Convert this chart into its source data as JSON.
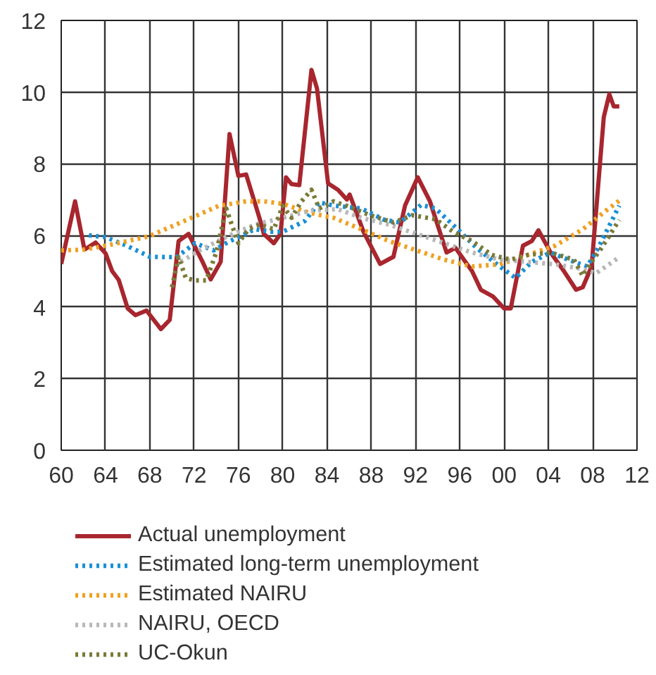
{
  "chart_data": {
    "type": "line",
    "xlim": [
      1960,
      2012
    ],
    "ylim": [
      0,
      12
    ],
    "xticks": [
      {
        "value": 1960,
        "label": "60"
      },
      {
        "value": 1964,
        "label": "64"
      },
      {
        "value": 1968,
        "label": "68"
      },
      {
        "value": 1972,
        "label": "72"
      },
      {
        "value": 1976,
        "label": "76"
      },
      {
        "value": 1980,
        "label": "80"
      },
      {
        "value": 1984,
        "label": "84"
      },
      {
        "value": 1988,
        "label": "88"
      },
      {
        "value": 1992,
        "label": "92"
      },
      {
        "value": 1996,
        "label": "96"
      },
      {
        "value": 2000,
        "label": "00"
      },
      {
        "value": 2004,
        "label": "04"
      },
      {
        "value": 2008,
        "label": "08"
      },
      {
        "value": 2012,
        "label": "12"
      }
    ],
    "yticks": [
      0,
      2,
      4,
      6,
      8,
      10,
      12
    ],
    "grid": true,
    "legend": "bottom",
    "series": [
      {
        "name": "Actual unemployment",
        "color": "#a8262e",
        "line_style": "solid",
        "x": [
          1960,
          1961.25,
          1962.1,
          1963.1,
          1964,
          1964.6,
          1965.2,
          1966,
          1966.7,
          1967.7,
          1969,
          1969.8,
          1970.6,
          1971.5,
          1972.7,
          1973.5,
          1974.4,
          1975.2,
          1976,
          1976.7,
          1977.9,
          1978.3,
          1979.2,
          1979.8,
          1980.3,
          1980.8,
          1981.5,
          1982.6,
          1983.1,
          1984.1,
          1985,
          1985.8,
          1986.05,
          1987.3,
          1988.8,
          1990,
          1991.05,
          1992.2,
          1993.3,
          1994.8,
          1995.6,
          1997.1,
          1997.9,
          1999,
          2000,
          2000.6,
          2001.7,
          2002.5,
          2003.1,
          2004.2,
          2005.4,
          2006.5,
          2007.1,
          2007.9,
          2009,
          2009.5,
          2009.9,
          2010.4
        ],
        "values": [
          5.2,
          6.95,
          5.6,
          5.8,
          5.5,
          5.0,
          4.75,
          3.96,
          3.77,
          3.9,
          3.38,
          3.64,
          5.84,
          6.04,
          5.3,
          4.77,
          5.26,
          8.83,
          7.66,
          7.7,
          6.49,
          6.04,
          5.78,
          6.04,
          7.62,
          7.43,
          7.4,
          10.62,
          10.1,
          7.45,
          7.27,
          7.0,
          7.14,
          6.1,
          5.2,
          5.4,
          6.83,
          7.62,
          6.95,
          5.52,
          5.65,
          5.0,
          4.48,
          4.29,
          3.96,
          3.96,
          5.71,
          5.84,
          6.14,
          5.52,
          5.0,
          4.48,
          4.55,
          5.13,
          9.3,
          9.94,
          9.6,
          9.6
        ]
      },
      {
        "name": "Estimated long-term unemployment",
        "color": "#1a8fd6",
        "line_style": "dotted",
        "x": [
          1962.5,
          1964,
          1966,
          1968,
          1970.4,
          1972.1,
          1973.75,
          1975,
          1977.5,
          1979,
          1980,
          1982,
          1983.3,
          1984.6,
          1987.1,
          1989.2,
          1990.6,
          1992.5,
          1993.8,
          1995.8,
          1997.5,
          1999.6,
          2001.05,
          2002.5,
          2004.2,
          2005.8,
          2007.5,
          2008.5,
          2010.4
        ],
        "values": [
          6.0,
          5.95,
          5.7,
          5.4,
          5.39,
          5.78,
          5.58,
          5.8,
          6.17,
          6.1,
          6.1,
          6.4,
          6.92,
          6.83,
          6.75,
          6.43,
          6.36,
          6.85,
          6.75,
          6.17,
          5.65,
          5.13,
          4.81,
          5.26,
          5.52,
          5.32,
          5.13,
          5.65,
          6.83
        ]
      },
      {
        "name": "Estimated NAIRU",
        "color": "#f0a020",
        "line_style": "dotted",
        "x": [
          1960,
          1962,
          1964,
          1967.9,
          1970.8,
          1974.2,
          1976.7,
          1978.3,
          1980,
          1982.5,
          1984.6,
          1987.1,
          1989.6,
          1992.1,
          1994.6,
          1997.1,
          1999.6,
          2002.1,
          2004.6,
          2007.1,
          2009.2,
          2010.4
        ],
        "values": [
          5.58,
          5.6,
          5.71,
          5.97,
          6.36,
          6.82,
          6.95,
          6.95,
          6.88,
          6.62,
          6.49,
          6.17,
          5.84,
          5.58,
          5.32,
          5.13,
          5.19,
          5.45,
          5.71,
          6.17,
          6.69,
          6.97
        ]
      },
      {
        "name": "NAIRU, OECD",
        "color": "#b8b8b8",
        "line_style": "dotted",
        "x": [
          1970.8,
          1972.5,
          1975,
          1977.5,
          1980,
          1982.5,
          1985,
          1987.1,
          1989.6,
          1992.1,
          1994.6,
          1997.1,
          1999.6,
          2002.1,
          2004.6,
          2007.1,
          2008.3,
          2010.4
        ],
        "values": [
          5.26,
          5.58,
          5.97,
          6.3,
          6.49,
          6.69,
          6.73,
          6.49,
          6.3,
          6.04,
          5.78,
          5.52,
          5.32,
          5.26,
          5.19,
          5.06,
          4.94,
          5.39
        ]
      },
      {
        "name": "UC-Okun",
        "color": "#7a7a3a",
        "line_style": "dotted",
        "x": [
          1970,
          1970.6,
          1971.25,
          1972.1,
          1973.1,
          1974,
          1974.9,
          1975.4,
          1976,
          1976.9,
          1977.9,
          1979.2,
          1980,
          1980.8,
          1981.7,
          1982.6,
          1983.3,
          1984.6,
          1985.8,
          1987.9,
          1990,
          1991.7,
          1993.8,
          1995.4,
          1997.1,
          1998.9,
          2000.6,
          2002.1,
          2004.2,
          2006.3,
          2007.1,
          2007.9,
          2008.8,
          2010.4
        ],
        "values": [
          4.55,
          5.39,
          4.81,
          4.74,
          4.74,
          5.52,
          6.75,
          6.3,
          5.78,
          6.17,
          6.3,
          6.17,
          6.82,
          6.49,
          6.95,
          7.27,
          6.75,
          6.95,
          6.82,
          6.56,
          6.36,
          6.56,
          6.45,
          6.1,
          5.84,
          5.45,
          5.32,
          5.45,
          5.52,
          5.32,
          4.87,
          5.26,
          5.65,
          6.43
        ]
      }
    ]
  }
}
